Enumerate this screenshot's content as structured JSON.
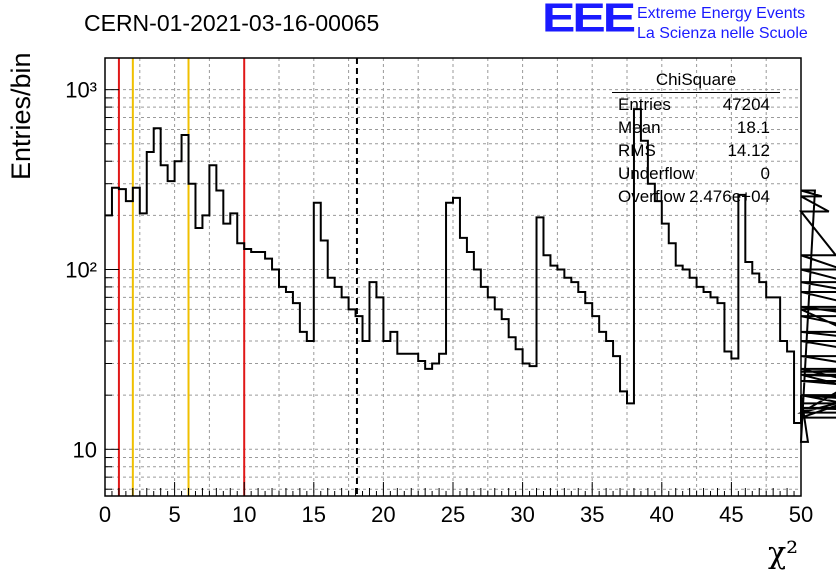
{
  "title": "CERN-01-2021-03-16-00065",
  "logo": {
    "text": "EEE",
    "line1": "Extreme Energy Events",
    "line2": "La Scienza nelle Scuole",
    "color": "#1a1aff"
  },
  "stats": {
    "title": "ChiSquare",
    "rows": [
      {
        "name": "Entries",
        "value": "47204"
      },
      {
        "name": "Mean",
        "value": "18.1"
      },
      {
        "name": "RMS",
        "value": "14.12"
      },
      {
        "name": "Underflow",
        "value": "0"
      },
      {
        "name": "Overflow",
        "value": "2.476e+04"
      }
    ]
  },
  "chart_data": {
    "type": "histogram",
    "xlabel": "χ²",
    "ylabel": "Entries/bin",
    "xlim": [
      0,
      50
    ],
    "ylog": true,
    "yrange": [
      5.5,
      1500
    ],
    "grid": true,
    "x_ticks": [
      "0",
      "5",
      "10",
      "15",
      "20",
      "25",
      "30",
      "35",
      "40",
      "45",
      "50"
    ],
    "y_ticks": [
      "10",
      "10²",
      "10³"
    ],
    "bin_width": 0.5,
    "values": [
      200,
      285,
      280,
      240,
      285,
      205,
      450,
      610,
      380,
      310,
      400,
      560,
      300,
      170,
      200,
      380,
      275,
      180,
      205,
      140,
      130,
      125,
      125,
      115,
      100,
      80,
      75,
      65,
      45,
      40,
      235,
      145,
      90,
      80,
      70,
      60,
      55,
      40,
      85,
      70,
      40,
      45,
      34,
      34,
      34,
      31,
      28,
      30,
      34,
      235,
      250,
      150,
      125,
      100,
      80,
      70,
      60,
      53,
      42,
      36,
      30,
      29,
      195,
      120,
      105,
      100,
      90,
      85,
      75,
      65,
      55,
      45,
      40,
      33,
      21,
      18,
      780,
      520,
      300,
      240,
      180,
      140,
      105,
      100,
      90,
      80,
      75,
      70,
      65,
      35,
      32,
      260,
      110,
      95,
      85,
      70,
      70,
      40,
      35,
      14,
      20,
      11,
      275,
      255,
      210,
      120,
      100,
      85,
      75,
      62,
      55,
      45,
      40,
      33,
      27,
      28,
      20,
      15,
      26,
      17,
      16,
      26,
      24,
      20,
      17,
      16,
      60,
      20,
      18
    ],
    "vlines": [
      {
        "x": 1,
        "color": "#e01818",
        "style": "solid"
      },
      {
        "x": 2,
        "color": "#f0c000",
        "style": "solid"
      },
      {
        "x": 6,
        "color": "#f0c000",
        "style": "solid"
      },
      {
        "x": 10,
        "color": "#e01818",
        "style": "solid"
      },
      {
        "x": 18.1,
        "color": "#000000",
        "style": "dashed"
      }
    ]
  }
}
